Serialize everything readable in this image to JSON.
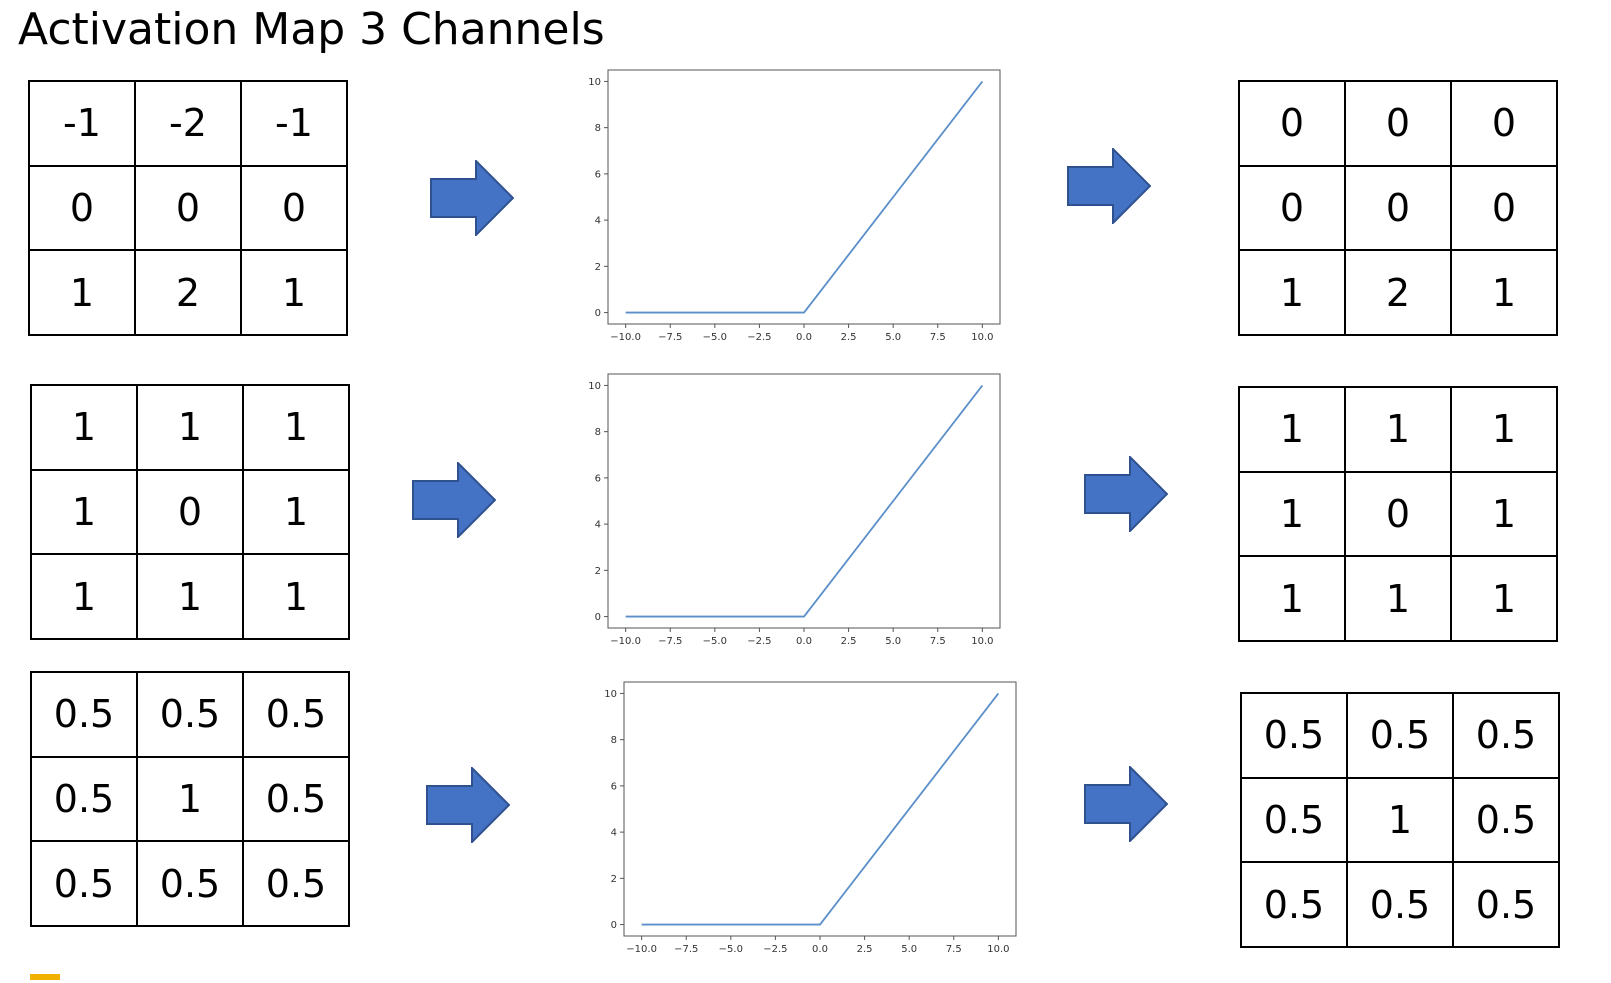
{
  "title": "Activation Map 3 Channels",
  "colors": {
    "arrow": "#4472c4",
    "arrow_border": "#2f528f",
    "curve": "#5b8fc9"
  },
  "channels": [
    {
      "input": [
        [
          "-1",
          "-2",
          "-1"
        ],
        [
          "0",
          "0",
          "0"
        ],
        [
          "1",
          "2",
          "1"
        ]
      ],
      "output": [
        [
          "0",
          "0",
          "0"
        ],
        [
          "0",
          "0",
          "0"
        ],
        [
          "1",
          "2",
          "1"
        ]
      ]
    },
    {
      "input": [
        [
          "1",
          "1",
          "1"
        ],
        [
          "1",
          "0",
          "1"
        ],
        [
          "1",
          "1",
          "1"
        ]
      ],
      "output": [
        [
          "1",
          "1",
          "1"
        ],
        [
          "1",
          "0",
          "1"
        ],
        [
          "1",
          "1",
          "1"
        ]
      ]
    },
    {
      "input": [
        [
          "0.5",
          "0.5",
          "0.5"
        ],
        [
          "0.5",
          "1",
          "0.5"
        ],
        [
          "0.5",
          "0.5",
          "0.5"
        ]
      ],
      "output": [
        [
          "0.5",
          "0.5",
          "0.5"
        ],
        [
          "0.5",
          "1",
          "0.5"
        ],
        [
          "0.5",
          "0.5",
          "0.5"
        ]
      ]
    }
  ],
  "chart_data": [
    {
      "type": "line",
      "x": [
        -10,
        0,
        10
      ],
      "y": [
        0,
        0,
        10
      ],
      "xlim": [
        -10,
        10
      ],
      "ylim": [
        0,
        10
      ],
      "xticks": [
        "-10.0",
        "-7.5",
        "-5.0",
        "-2.5",
        "0.0",
        "2.5",
        "5.0",
        "7.5",
        "10.0"
      ],
      "yticks": [
        "0",
        "2",
        "4",
        "6",
        "8",
        "10"
      ],
      "grid": false
    },
    {
      "type": "line",
      "x": [
        -10,
        0,
        10
      ],
      "y": [
        0,
        0,
        10
      ],
      "xlim": [
        -10,
        10
      ],
      "ylim": [
        0,
        10
      ],
      "xticks": [
        "-10.0",
        "-7.5",
        "-5.0",
        "-2.5",
        "0.0",
        "2.5",
        "5.0",
        "7.5",
        "10.0"
      ],
      "yticks": [
        "0",
        "2",
        "4",
        "6",
        "8",
        "10"
      ],
      "grid": false
    },
    {
      "type": "line",
      "x": [
        -10,
        0,
        10
      ],
      "y": [
        0,
        0,
        10
      ],
      "xlim": [
        -10,
        10
      ],
      "ylim": [
        0,
        10
      ],
      "xticks": [
        "-10.0",
        "-7.5",
        "-5.0",
        "-2.5",
        "0.0",
        "2.5",
        "5.0",
        "7.5",
        "10.0"
      ],
      "yticks": [
        "0",
        "2",
        "4",
        "6",
        "8",
        "10"
      ],
      "grid": false
    }
  ]
}
